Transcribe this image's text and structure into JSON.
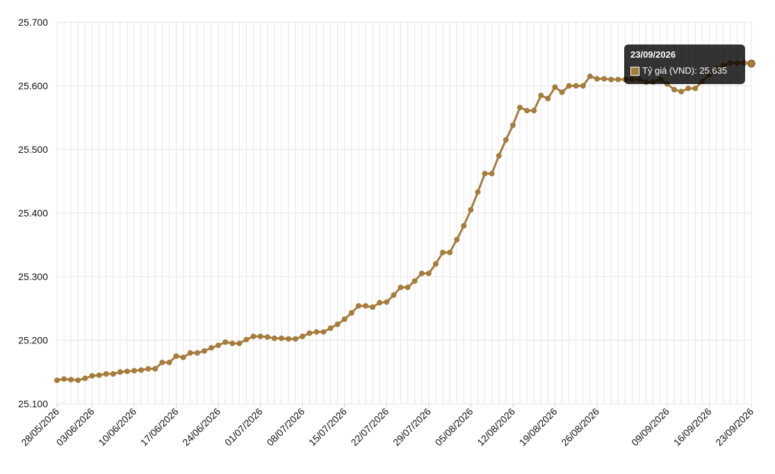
{
  "colors": {
    "line": "#a67c3d",
    "grid": "#e5e5e5",
    "text": "#111111",
    "tooltip_bg": "#000000"
  },
  "tooltip": {
    "title": "23/09/2026",
    "label": "Tỷ giá (VND): 25.635"
  },
  "chart_data": {
    "type": "line",
    "title": "",
    "xlabel": "",
    "ylabel": "",
    "ylim": [
      25.1,
      25.7
    ],
    "y_ticks": [
      "25.100",
      "25.200",
      "25.300",
      "25.400",
      "25.500",
      "25.600",
      "25.700"
    ],
    "x_tick_labels": [
      "28/05/2026",
      "03/06/2026",
      "10/06/2026",
      "17/06/2026",
      "24/06/2026",
      "01/07/2026",
      "08/07/2026",
      "15/07/2026",
      "22/07/2026",
      "29/07/2026",
      "05/08/2026",
      "12/08/2026",
      "19/08/2026",
      "26/08/2026",
      "09/09/2026",
      "16/09/2026",
      "23/09/2026"
    ],
    "x_tick_indices": [
      0,
      5,
      11,
      17,
      23,
      29,
      35,
      41,
      47,
      53,
      59,
      65,
      71,
      77,
      87,
      93,
      99
    ],
    "grid": true,
    "legend": "none",
    "series": [
      {
        "name": "Tỷ giá (VND)",
        "values": [
          25.137,
          25.139,
          25.138,
          25.137,
          25.14,
          25.144,
          25.145,
          25.147,
          25.147,
          25.15,
          25.151,
          25.152,
          25.153,
          25.155,
          25.155,
          25.165,
          25.165,
          25.175,
          25.173,
          25.18,
          25.18,
          25.183,
          25.188,
          25.192,
          25.197,
          25.195,
          25.195,
          25.201,
          25.206,
          25.206,
          25.205,
          25.203,
          25.203,
          25.202,
          25.202,
          25.206,
          25.211,
          25.213,
          25.213,
          25.219,
          25.225,
          25.233,
          25.243,
          25.254,
          25.254,
          25.252,
          25.259,
          25.26,
          25.271,
          25.283,
          25.283,
          25.293,
          25.305,
          25.305,
          25.32,
          25.338,
          25.338,
          25.358,
          25.38,
          25.405,
          25.433,
          25.462,
          25.462,
          25.49,
          25.515,
          25.538,
          25.566,
          25.561,
          25.561,
          25.585,
          25.58,
          25.598,
          25.59,
          25.6,
          25.6,
          25.6,
          25.615,
          25.611,
          25.611,
          25.61,
          25.61,
          25.61,
          25.61,
          25.61,
          25.606,
          25.606,
          25.61,
          25.603,
          25.594,
          25.591,
          25.596,
          25.596,
          25.607,
          25.618,
          25.627,
          25.632,
          25.636,
          25.636,
          25.636,
          25.635
        ]
      }
    ]
  }
}
